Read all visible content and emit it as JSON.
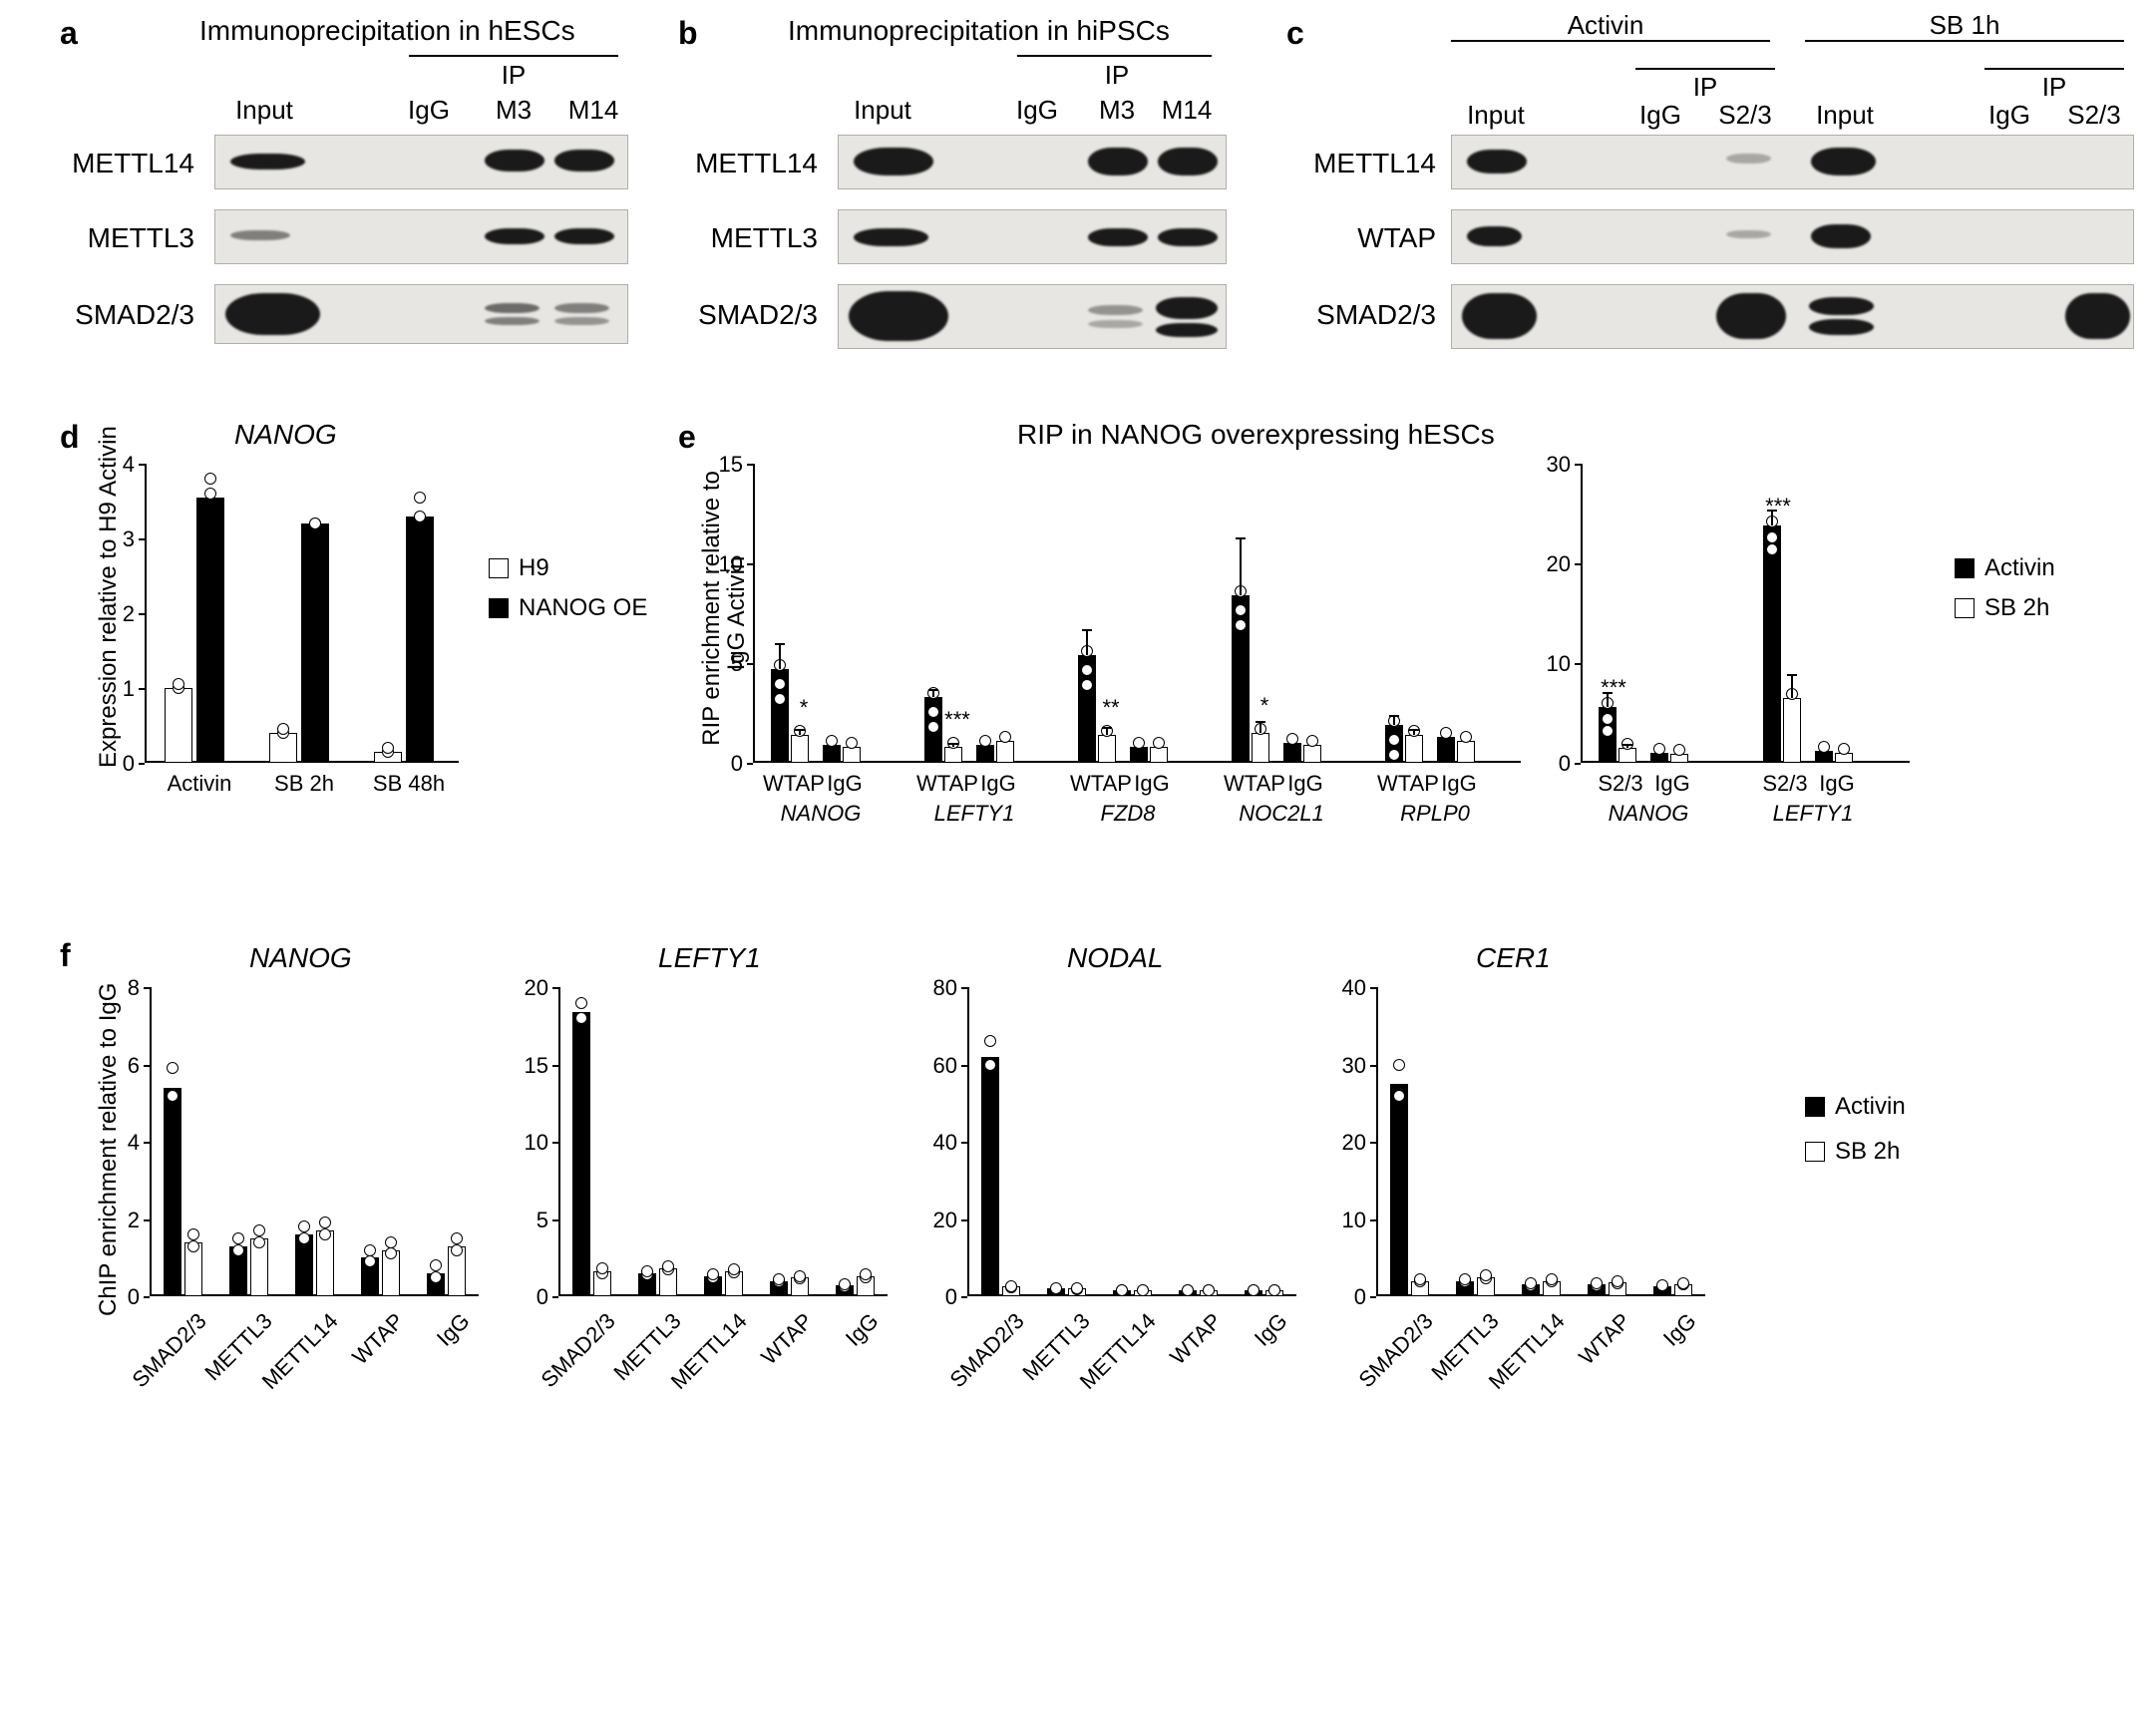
{
  "panelA": {
    "label": "a",
    "title": "Immunoprecipitation in hESCs",
    "ip_label": "IP",
    "columns": [
      "Input",
      "IgG",
      "M3",
      "M14"
    ],
    "rows": [
      "METTL14",
      "METTL3",
      "SMAD2/3"
    ],
    "bands": {
      "METTL14": [
        1,
        0,
        1,
        1
      ],
      "METTL3": [
        0.3,
        0,
        1,
        1
      ],
      "SMAD2/3": [
        1,
        0,
        0.4,
        0.4
      ]
    },
    "colors": {
      "band_bg": "#e8e6e2",
      "band_border": "#b0aea8",
      "mark": "#1a1a1a"
    }
  },
  "panelB": {
    "label": "b",
    "title": "Immunoprecipitation in hiPSCs",
    "ip_label": "IP",
    "columns": [
      "Input",
      "IgG",
      "M3",
      "M14"
    ],
    "rows": [
      "METTL14",
      "METTL3",
      "SMAD2/3"
    ],
    "bands": {
      "METTL14": [
        1,
        0,
        1,
        1
      ],
      "METTL3": [
        1,
        0,
        1,
        1
      ],
      "SMAD2/3": [
        1,
        0,
        0.3,
        0.8
      ]
    }
  },
  "panelC": {
    "label": "c",
    "groups": [
      "Activin",
      "SB 1h"
    ],
    "ip_label": "IP",
    "columns": [
      "Input",
      "IgG",
      "S2/3"
    ],
    "rows": [
      "METTL14",
      "WTAP",
      "SMAD2/3"
    ],
    "bands": {
      "Activin": {
        "METTL14": [
          1,
          0,
          0.2
        ],
        "WTAP": [
          1,
          0,
          0.2
        ],
        "SMAD2/3": [
          1,
          0,
          1
        ]
      },
      "SB 1h": {
        "METTL14": [
          1,
          0,
          0
        ],
        "WTAP": [
          1,
          0,
          0
        ],
        "SMAD2/3": [
          1,
          0,
          1
        ]
      }
    }
  },
  "panelD": {
    "label": "d",
    "title": "NANOG",
    "ylab": "Expression relative to H9 Activin",
    "ylim": [
      0,
      4
    ],
    "ytick_step": 1,
    "categories": [
      "Activin",
      "SB 2h",
      "SB 48h"
    ],
    "series": {
      "H9": {
        "color": "#ffffff",
        "values": [
          1.0,
          0.4,
          0.15
        ],
        "points": [
          [
            1.0,
            1.05
          ],
          [
            0.4,
            0.45
          ],
          [
            0.15,
            0.2
          ]
        ]
      },
      "NANOG OE": {
        "color": "#000000",
        "values": [
          3.55,
          3.2,
          3.3
        ],
        "points": [
          [
            3.6,
            3.8
          ],
          [
            3.2,
            3.2
          ],
          [
            3.3,
            3.55
          ]
        ]
      }
    },
    "legend": [
      "H9",
      "NANOG OE"
    ]
  },
  "panelE": {
    "label": "e",
    "title": "RIP in NANOG overexpressing hESCs",
    "ylab": "RIP enrichment relative to\nIgG Activin",
    "left_chart": {
      "ylim": [
        0,
        15
      ],
      "ytick_step": 5,
      "genes": [
        "NANOG",
        "LEFTY1",
        "FZD8",
        "NOC2L1",
        "RPLP0"
      ],
      "groups": [
        "WTAP",
        "IgG"
      ],
      "series": {
        "Activin": {
          "color": "#000000"
        },
        "SB 2h": {
          "color": "#ffffff"
        }
      },
      "values": {
        "NANOG": {
          "WTAP": {
            "Activin": 4.7,
            "SB 2h": 1.4
          },
          "IgG": {
            "Activin": 0.9,
            "SB 2h": 0.8
          }
        },
        "LEFTY1": {
          "WTAP": {
            "Activin": 3.3,
            "SB 2h": 0.8
          },
          "IgG": {
            "Activin": 0.9,
            "SB 2h": 1.1
          }
        },
        "FZD8": {
          "WTAP": {
            "Activin": 5.4,
            "SB 2h": 1.4
          },
          "IgG": {
            "Activin": 0.8,
            "SB 2h": 0.8
          }
        },
        "NOC2L1": {
          "WTAP": {
            "Activin": 8.4,
            "SB 2h": 1.5
          },
          "IgG": {
            "Activin": 1.0,
            "SB 2h": 0.9
          }
        },
        "RPLP0": {
          "WTAP": {
            "Activin": 1.9,
            "SB 2h": 1.4
          },
          "IgG": {
            "Activin": 1.3,
            "SB 2h": 1.1
          }
        }
      },
      "err": {
        "NANOG": {
          "WTAP": {
            "Activin": 1.3,
            "SB 2h": 0.3
          }
        },
        "LEFTY1": {
          "WTAP": {
            "Activin": 0.4,
            "SB 2h": 0.2
          }
        },
        "FZD8": {
          "WTAP": {
            "Activin": 1.3,
            "SB 2h": 0.4
          }
        },
        "NOC2L1": {
          "WTAP": {
            "Activin": 2.9,
            "SB 2h": 0.6
          }
        },
        "RPLP0": {
          "WTAP": {
            "Activin": 0.5,
            "SB 2h": 0.3
          }
        }
      },
      "sig": {
        "NANOG": "*",
        "LEFTY1": "***",
        "FZD8": "**",
        "NOC2L1": "*"
      }
    },
    "right_chart": {
      "ylim": [
        0,
        30
      ],
      "ytick_step": 10,
      "genes": [
        "NANOG",
        "LEFTY1"
      ],
      "groups": [
        "S2/3",
        "IgG"
      ],
      "values": {
        "NANOG": {
          "S2/3": {
            "Activin": 5.6,
            "SB 2h": 1.5
          },
          "IgG": {
            "Activin": 1.0,
            "SB 2h": 0.9
          }
        },
        "LEFTY1": {
          "S2/3": {
            "Activin": 23.8,
            "SB 2h": 6.5
          },
          "IgG": {
            "Activin": 1.2,
            "SB 2h": 1.0
          }
        }
      },
      "err": {
        "NANOG": {
          "S2/3": {
            "Activin": 1.5,
            "SB 2h": 0.4
          }
        },
        "LEFTY1": {
          "S2/3": {
            "Activin": 1.6,
            "SB 2h": 2.4
          }
        }
      },
      "sig": {
        "NANOG": "***",
        "LEFTY1": "***"
      }
    },
    "legend": [
      "Activin",
      "SB 2h"
    ]
  },
  "panelF": {
    "label": "f",
    "ylab": "ChIP enrichment relative to IgG",
    "legend": [
      "Activin",
      "SB 2h"
    ],
    "x_categories": [
      "SMAD2/3",
      "METTL3",
      "METTL14",
      "WTAP",
      "IgG"
    ],
    "charts": [
      {
        "gene": "NANOG",
        "ylim": [
          0,
          8
        ],
        "ytick_step": 2,
        "values": {
          "SMAD2/3": {
            "Activin": 5.4,
            "SB 2h": 1.4
          },
          "METTL3": {
            "Activin": 1.3,
            "SB 2h": 1.5
          },
          "METTL14": {
            "Activin": 1.6,
            "SB 2h": 1.7
          },
          "WTAP": {
            "Activin": 1.0,
            "SB 2h": 1.2
          },
          "IgG": {
            "Activin": 0.6,
            "SB 2h": 1.3
          }
        },
        "points": {
          "SMAD2/3": {
            "Activin": [
              5.2,
              5.9
            ],
            "SB 2h": [
              1.3,
              1.6
            ]
          },
          "METTL3": {
            "Activin": [
              1.2,
              1.5
            ],
            "SB 2h": [
              1.4,
              1.7
            ]
          },
          "METTL14": {
            "Activin": [
              1.5,
              1.8
            ],
            "SB 2h": [
              1.6,
              1.9
            ]
          },
          "WTAP": {
            "Activin": [
              0.9,
              1.2
            ],
            "SB 2h": [
              1.1,
              1.4
            ]
          },
          "IgG": {
            "Activin": [
              0.5,
              0.8
            ],
            "SB 2h": [
              1.2,
              1.5
            ]
          }
        }
      },
      {
        "gene": "LEFTY1",
        "ylim": [
          0,
          20
        ],
        "ytick_step": 5,
        "values": {
          "SMAD2/3": {
            "Activin": 18.4,
            "SB 2h": 1.6
          },
          "METTL3": {
            "Activin": 1.5,
            "SB 2h": 1.8
          },
          "METTL14": {
            "Activin": 1.3,
            "SB 2h": 1.6
          },
          "WTAP": {
            "Activin": 1.0,
            "SB 2h": 1.2
          },
          "IgG": {
            "Activin": 0.7,
            "SB 2h": 1.3
          }
        },
        "points": {
          "SMAD2/3": {
            "Activin": [
              18.0,
              19.0
            ],
            "SB 2h": [
              1.5,
              1.8
            ]
          }
        }
      },
      {
        "gene": "NODAL",
        "ylim": [
          0,
          80
        ],
        "ytick_step": 20,
        "values": {
          "SMAD2/3": {
            "Activin": 62,
            "SB 2h": 2.5
          },
          "METTL3": {
            "Activin": 2,
            "SB 2h": 2
          },
          "METTL14": {
            "Activin": 1.5,
            "SB 2h": 1.5
          },
          "WTAP": {
            "Activin": 1.5,
            "SB 2h": 1.5
          },
          "IgG": {
            "Activin": 1.5,
            "SB 2h": 1.5
          }
        },
        "points": {
          "SMAD2/3": {
            "Activin": [
              60,
              66
            ]
          }
        }
      },
      {
        "gene": "CER1",
        "ylim": [
          0,
          40
        ],
        "ytick_step": 10,
        "values": {
          "SMAD2/3": {
            "Activin": 27.5,
            "SB 2h": 2
          },
          "METTL3": {
            "Activin": 2,
            "SB 2h": 2.5
          },
          "METTL14": {
            "Activin": 1.5,
            "SB 2h": 2
          },
          "WTAP": {
            "Activin": 1.5,
            "SB 2h": 1.8
          },
          "IgG": {
            "Activin": 1.3,
            "SB 2h": 1.6
          }
        },
        "points": {
          "SMAD2/3": {
            "Activin": [
              26,
              30
            ]
          }
        }
      }
    ]
  }
}
